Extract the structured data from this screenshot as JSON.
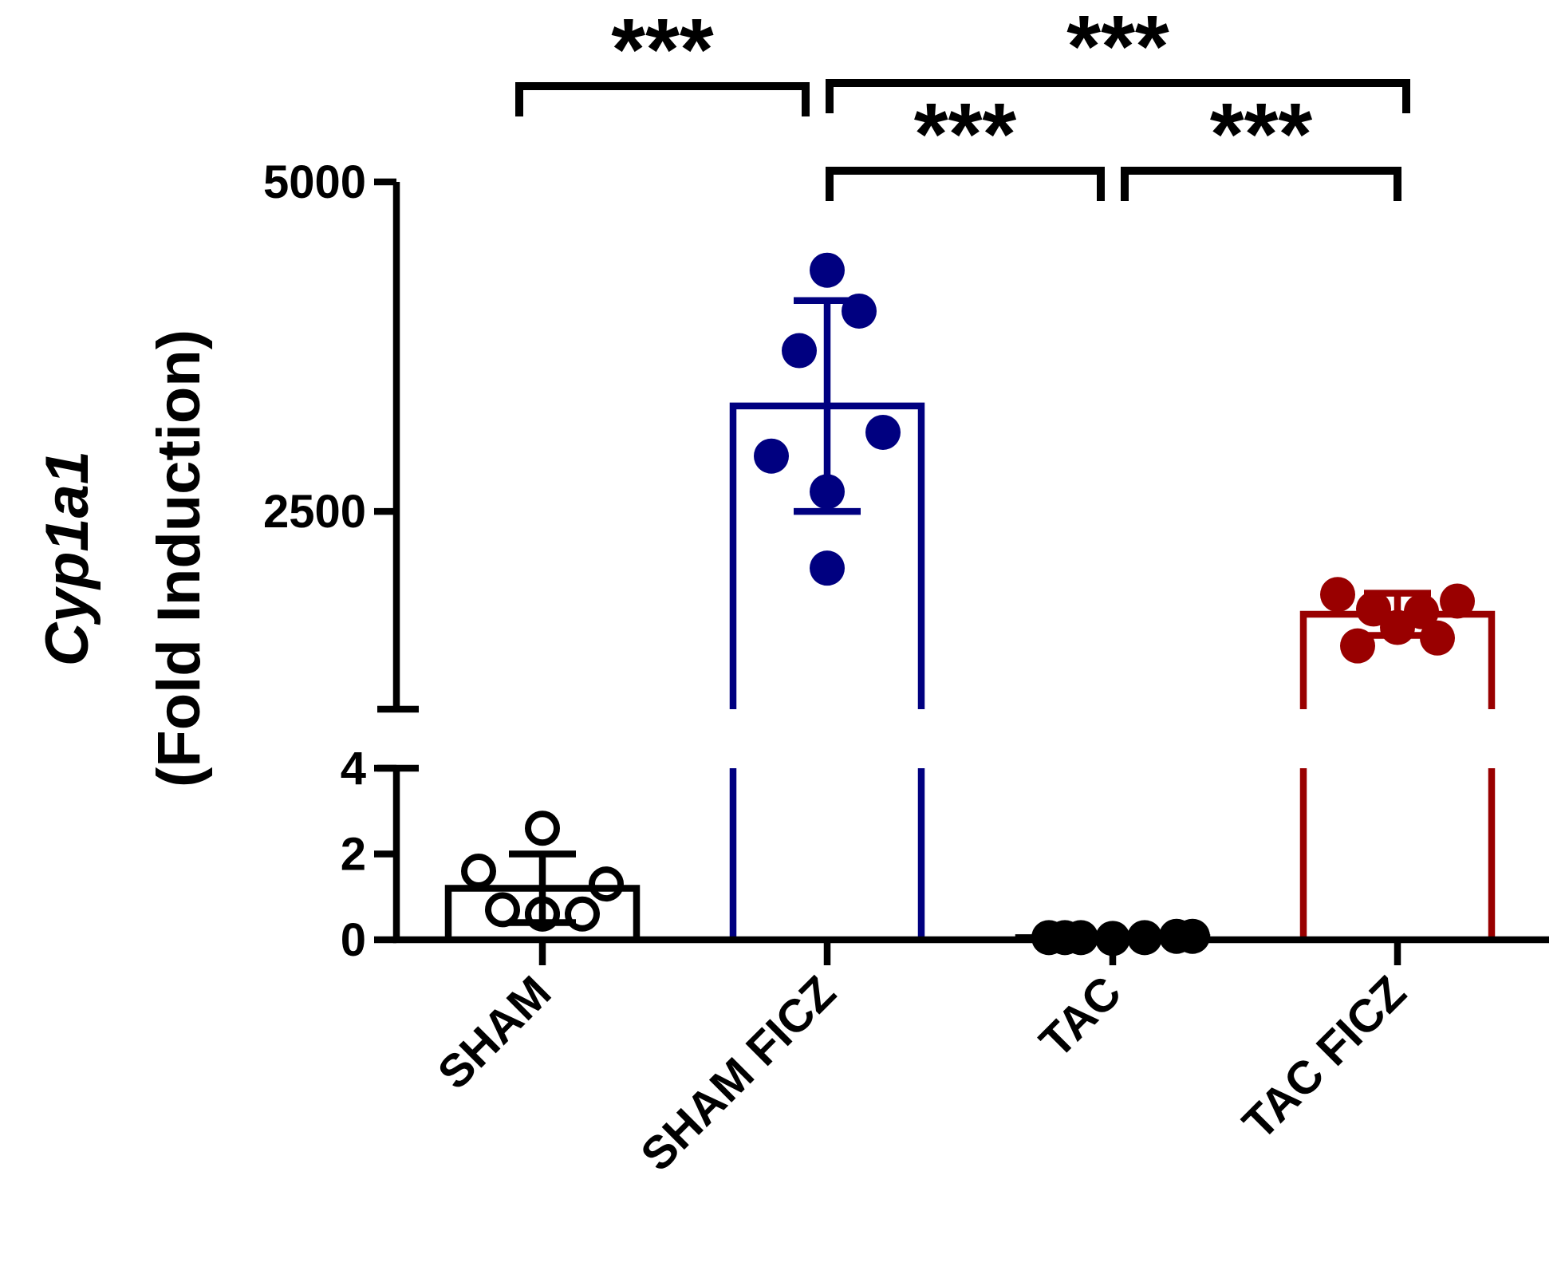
{
  "chart_data": {
    "type": "bar",
    "categories": [
      "SHAM",
      "SHAM FICZ",
      "TAC",
      "TAC FICZ"
    ],
    "ylabel_gene": "Cyp1a1",
    "ylabel_unit": "(Fold Induction)",
    "y_axis_broken": true,
    "y_segments": [
      {
        "range": [
          0,
          4
        ],
        "ticks": [
          "0",
          "2",
          "4"
        ]
      },
      {
        "range": [
          1000,
          5000
        ],
        "ticks": [
          "2500",
          "5000"
        ]
      }
    ],
    "series": [
      {
        "category": "SHAM",
        "mean": 1.2,
        "sd_low": 0.4,
        "sd_high": 2.0,
        "points": [
          2.6,
          1.6,
          1.3,
          0.7,
          0.6,
          0.6,
          0.6
        ],
        "filled": false,
        "color": "#000000"
      },
      {
        "category": "SHAM FICZ",
        "mean": 3300,
        "sd_low": 2500,
        "sd_high": 4100,
        "points": [
          4330,
          4020,
          3720,
          3100,
          2920,
          2650,
          2070
        ],
        "filled": true,
        "color": "#000080"
      },
      {
        "category": "TAC",
        "mean": 0.05,
        "sd_low": 0.02,
        "sd_high": 0.08,
        "points": [
          0.05,
          0.05,
          0.03,
          0.05,
          0.08,
          0.08,
          0.05
        ],
        "filled": true,
        "color": "#000000"
      },
      {
        "category": "TAC FICZ",
        "mean": 1720,
        "sd_low": 1560,
        "sd_high": 1880,
        "points": [
          1870,
          1820,
          1760,
          1740,
          1620,
          1540,
          1480
        ],
        "filled": true,
        "color": "#990000"
      }
    ],
    "significance": [
      {
        "from": "SHAM",
        "to": "SHAM FICZ",
        "label": "***"
      },
      {
        "from": "SHAM FICZ",
        "to": "TAC FICZ",
        "label": "***"
      },
      {
        "from": "SHAM FICZ",
        "to": "TAC",
        "label": "***"
      },
      {
        "from": "TAC",
        "to": "TAC FICZ",
        "label": "***"
      }
    ]
  }
}
